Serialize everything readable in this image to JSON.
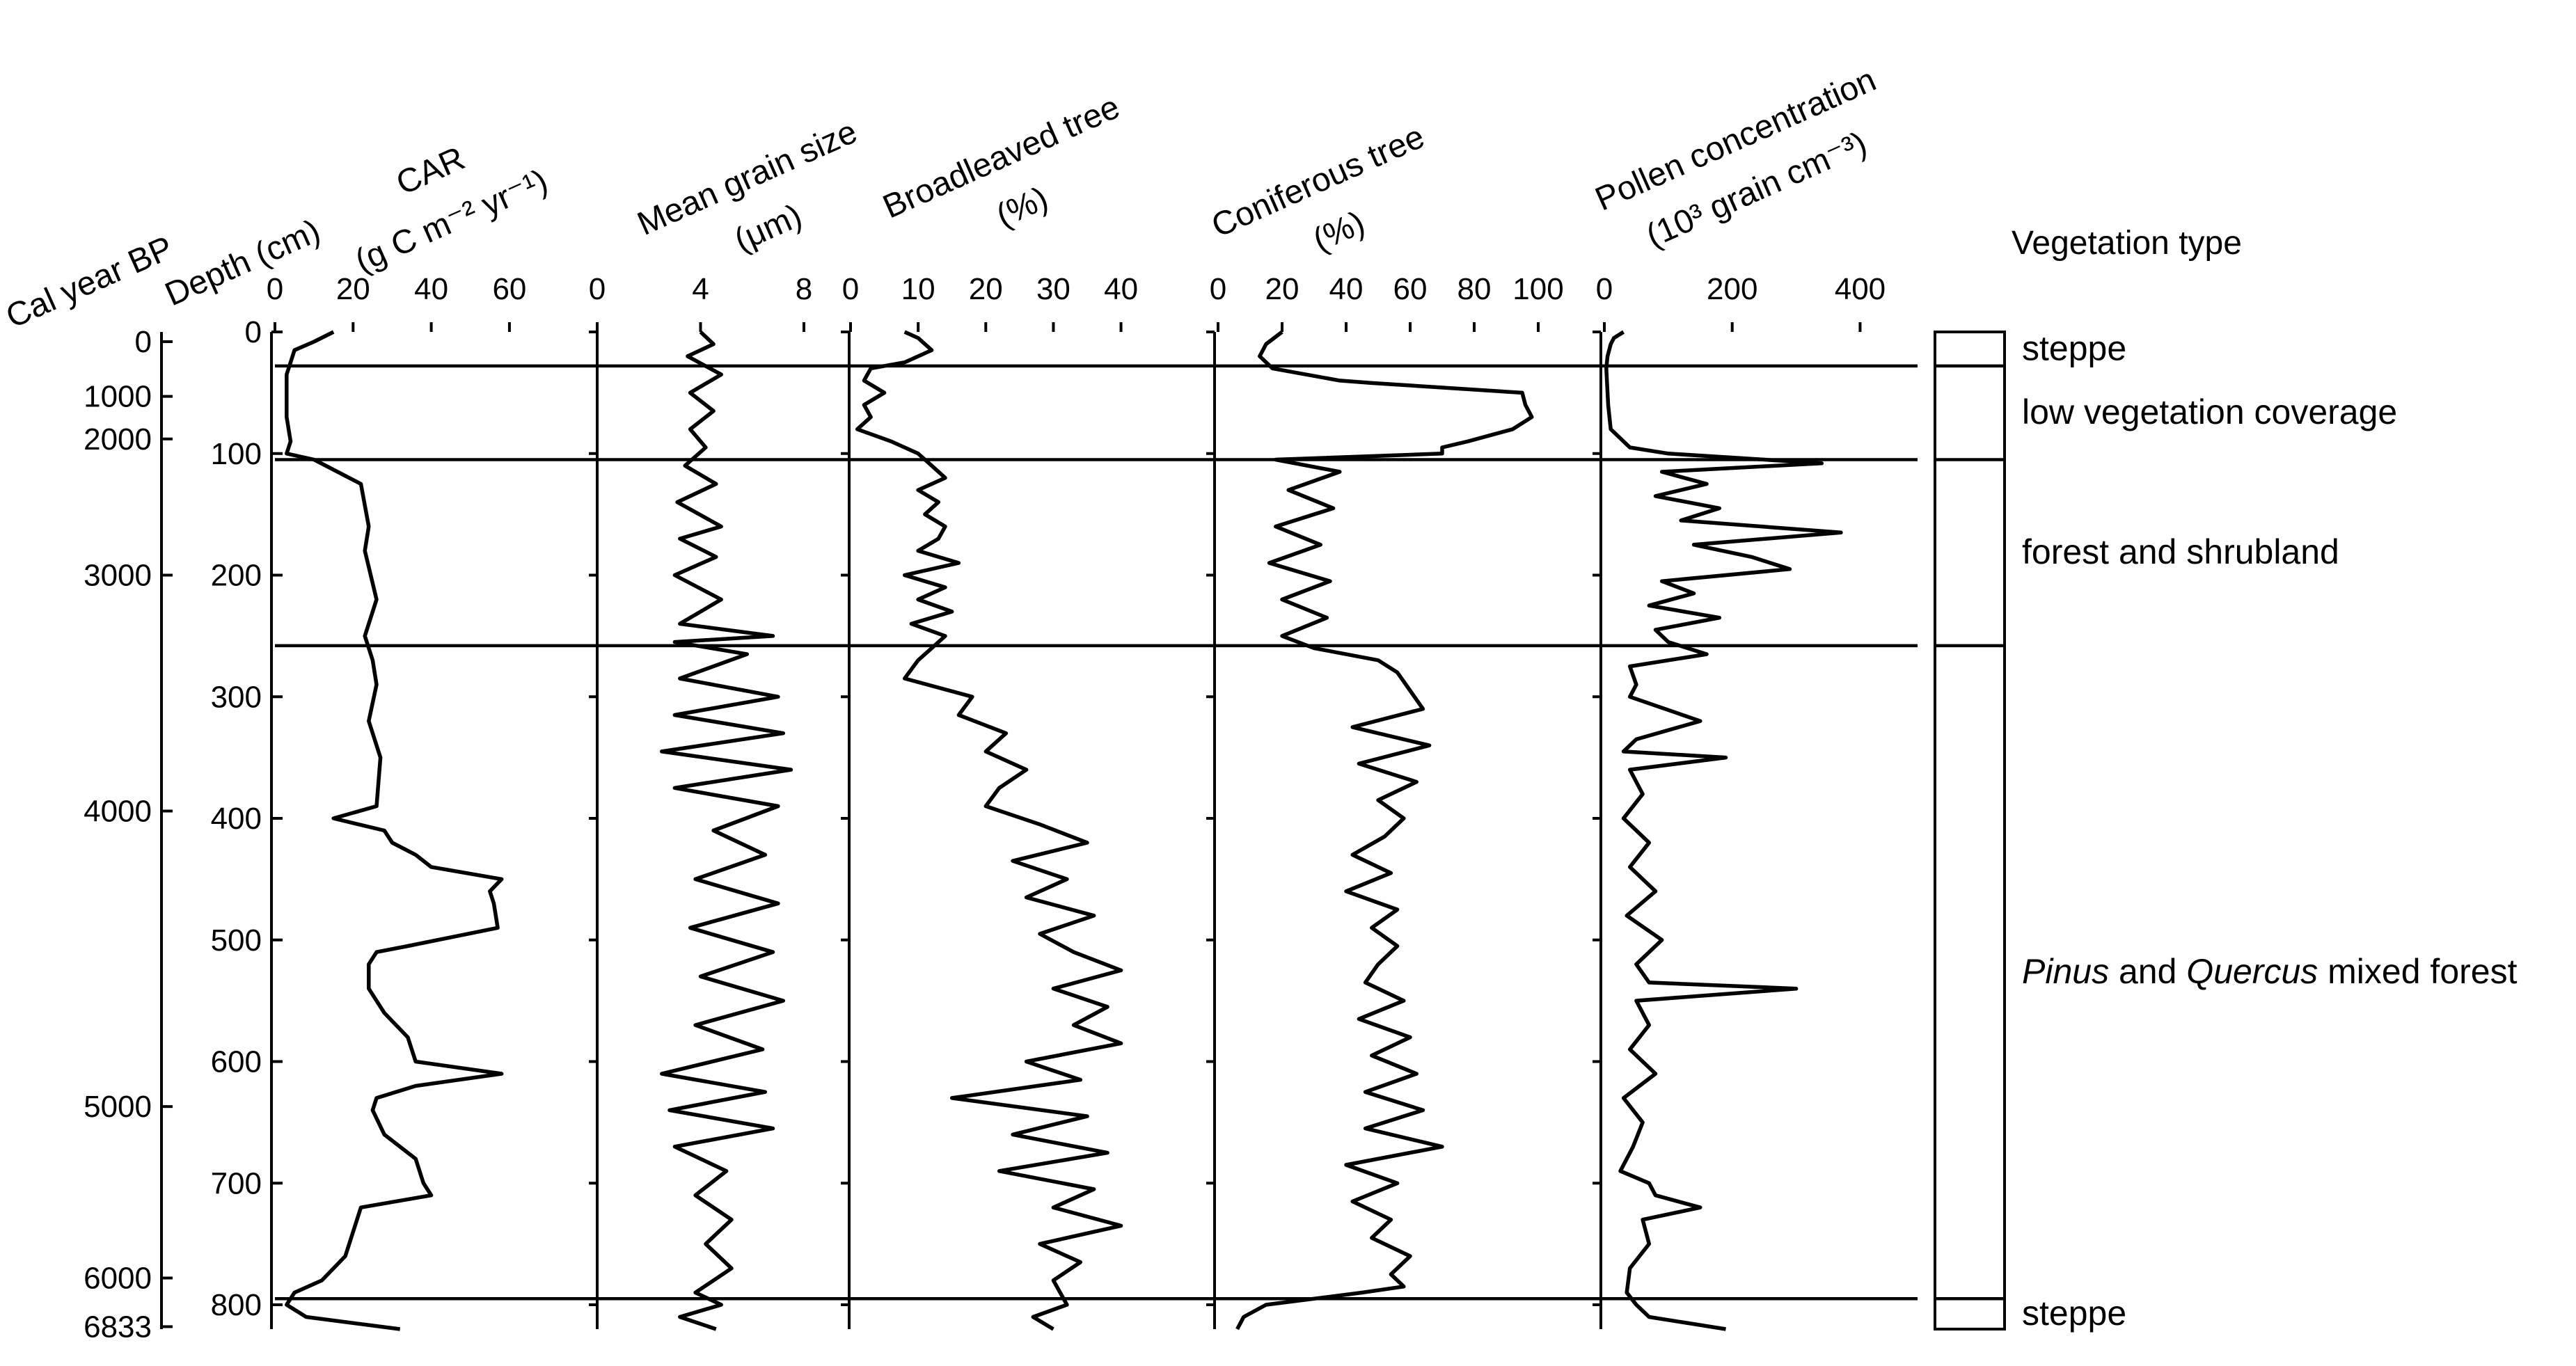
{
  "chart_data": {
    "type": "line",
    "orientation": "vertical-depth-profile",
    "depth_axis": {
      "label": "Depth (cm)",
      "range": [
        0,
        820
      ],
      "ticks": [
        0,
        100,
        200,
        300,
        400,
        500,
        600,
        700,
        800
      ]
    },
    "age_axis": {
      "label": "Cal year BP",
      "ticks": [
        {
          "label": "0",
          "depth": 8
        },
        {
          "label": "1000",
          "depth": 53
        },
        {
          "label": "2000",
          "depth": 88
        },
        {
          "label": "3000",
          "depth": 200
        },
        {
          "label": "4000",
          "depth": 394
        },
        {
          "label": "5000",
          "depth": 637
        },
        {
          "label": "6000",
          "depth": 778
        },
        {
          "label": "6833",
          "depth": 818
        }
      ]
    },
    "panels": [
      {
        "name": "CAR",
        "label_lines": [
          "CAR",
          "(g C m⁻² yr⁻¹)"
        ],
        "xlim": [
          0,
          65
        ],
        "ticks": [
          0,
          20,
          40,
          60
        ],
        "depths": [
          0,
          8,
          15,
          25,
          35,
          50,
          70,
          90,
          100,
          105,
          125,
          160,
          180,
          220,
          250,
          270,
          290,
          320,
          350,
          390,
          400,
          410,
          420,
          430,
          440,
          450,
          460,
          470,
          490,
          505,
          510,
          520,
          540,
          560,
          580,
          600,
          610,
          620,
          630,
          640,
          660,
          680,
          700,
          710,
          720,
          740,
          760,
          770,
          780,
          790,
          800,
          810,
          820
        ],
        "values": [
          15,
          10,
          5,
          4,
          3,
          3,
          3,
          4,
          3,
          10,
          22,
          24,
          23,
          26,
          23,
          25,
          26,
          24,
          27,
          26,
          15,
          28,
          30,
          36,
          40,
          58,
          55,
          56,
          57,
          34,
          26,
          24,
          24,
          28,
          34,
          36,
          58,
          36,
          26,
          25,
          28,
          36,
          38,
          40,
          22,
          20,
          18,
          15,
          12,
          5,
          3,
          8,
          32
        ]
      },
      {
        "name": "Mean grain size",
        "label_lines": [
          "Mean grain size",
          "(μm)"
        ],
        "xlim": [
          0,
          8
        ],
        "ticks": [
          0,
          4,
          8
        ],
        "depths": [
          0,
          10,
          20,
          35,
          50,
          65,
          80,
          95,
          110,
          125,
          140,
          160,
          170,
          185,
          200,
          220,
          240,
          250,
          255,
          265,
          285,
          300,
          315,
          330,
          345,
          360,
          375,
          390,
          410,
          430,
          450,
          470,
          490,
          510,
          530,
          550,
          570,
          590,
          610,
          625,
          640,
          655,
          670,
          690,
          710,
          730,
          750,
          770,
          790,
          800,
          810,
          820
        ],
        "values": [
          4,
          4.5,
          3.5,
          4.8,
          3.6,
          4.5,
          3.6,
          4.2,
          3.4,
          4.6,
          3.1,
          4.8,
          3.2,
          4.6,
          3.0,
          4.8,
          3.2,
          6.8,
          3.0,
          5.8,
          3.2,
          7.0,
          3.0,
          7.2,
          2.5,
          7.5,
          3.0,
          7.0,
          4.5,
          6.5,
          3.8,
          7.0,
          3.6,
          6.8,
          4.0,
          7.2,
          3.8,
          6.4,
          2.5,
          6.5,
          2.8,
          6.8,
          3.0,
          5.0,
          3.8,
          5.2,
          4.2,
          5.2,
          3.8,
          4.8,
          3.2,
          4.6
        ]
      },
      {
        "name": "Broadleaved tree",
        "label_lines": [
          "Broadleaved tree",
          "(%)"
        ],
        "xlim": [
          0,
          42
        ],
        "ticks": [
          0,
          10,
          20,
          30,
          40
        ],
        "depths": [
          0,
          5,
          15,
          25,
          30,
          40,
          50,
          60,
          70,
          80,
          90,
          100,
          110,
          120,
          130,
          140,
          150,
          160,
          170,
          180,
          190,
          200,
          210,
          220,
          230,
          240,
          250,
          260,
          270,
          285,
          300,
          315,
          330,
          345,
          360,
          375,
          390,
          405,
          420,
          435,
          450,
          465,
          480,
          495,
          510,
          525,
          540,
          555,
          570,
          585,
          600,
          615,
          630,
          645,
          660,
          675,
          690,
          705,
          720,
          735,
          750,
          765,
          780,
          800,
          810,
          820
        ],
        "values": [
          8,
          10,
          12,
          8,
          3,
          2,
          5,
          2,
          3,
          1,
          6,
          10,
          12,
          14,
          10,
          13,
          11,
          14,
          13,
          10,
          16,
          8,
          14,
          10,
          15,
          9,
          14,
          12,
          10,
          8,
          18,
          16,
          23,
          20,
          26,
          22,
          20,
          28,
          35,
          24,
          32,
          26,
          36,
          28,
          33,
          40,
          30,
          38,
          33,
          40,
          26,
          34,
          15,
          35,
          24,
          38,
          22,
          36,
          30,
          40,
          28,
          34,
          30,
          32,
          27,
          30
        ]
      },
      {
        "name": "Coniferous tree",
        "label_lines": [
          "Coniferous tree",
          "(%)"
        ],
        "xlim": [
          0,
          100
        ],
        "ticks": [
          0,
          20,
          40,
          60,
          80,
          100
        ],
        "depths": [
          0,
          10,
          20,
          30,
          40,
          42,
          50,
          60,
          70,
          80,
          90,
          95,
          100,
          105,
          115,
          130,
          145,
          160,
          175,
          190,
          205,
          220,
          235,
          250,
          260,
          270,
          280,
          295,
          310,
          325,
          340,
          355,
          370,
          385,
          400,
          415,
          430,
          445,
          460,
          475,
          490,
          505,
          520,
          535,
          550,
          565,
          580,
          595,
          610,
          625,
          640,
          655,
          670,
          685,
          700,
          715,
          730,
          745,
          760,
          775,
          785,
          790,
          800,
          810,
          820
        ],
        "values": [
          20,
          15,
          13,
          17,
          38,
          48,
          95,
          96,
          98,
          92,
          78,
          70,
          70,
          18,
          38,
          22,
          36,
          18,
          32,
          16,
          35,
          20,
          34,
          20,
          30,
          50,
          56,
          60,
          64,
          42,
          66,
          44,
          62,
          50,
          58,
          52,
          42,
          54,
          40,
          56,
          48,
          56,
          50,
          46,
          58,
          44,
          60,
          48,
          62,
          46,
          64,
          46,
          70,
          40,
          56,
          42,
          54,
          48,
          60,
          54,
          58,
          45,
          15,
          8,
          6
        ]
      },
      {
        "name": "Pollen concentration",
        "label_lines": [
          "Pollen concentration",
          "(10³ grain cm⁻³)"
        ],
        "xlim": [
          0,
          430
        ],
        "ticks": [
          0,
          200,
          400
        ],
        "depths": [
          0,
          5,
          10,
          20,
          30,
          40,
          60,
          80,
          95,
          100,
          108,
          115,
          125,
          135,
          145,
          155,
          165,
          175,
          185,
          195,
          205,
          215,
          225,
          235,
          245,
          255,
          265,
          275,
          290,
          300,
          320,
          335,
          345,
          350,
          360,
          380,
          400,
          420,
          440,
          460,
          480,
          500,
          520,
          535,
          540,
          550,
          570,
          590,
          610,
          630,
          650,
          670,
          690,
          700,
          710,
          720,
          730,
          750,
          770,
          790,
          800,
          810,
          820
        ],
        "values": [
          30,
          15,
          10,
          5,
          3,
          4,
          6,
          10,
          40,
          100,
          340,
          90,
          160,
          80,
          180,
          120,
          370,
          140,
          230,
          290,
          90,
          140,
          70,
          180,
          80,
          100,
          160,
          40,
          50,
          40,
          150,
          50,
          30,
          190,
          40,
          60,
          30,
          70,
          40,
          80,
          35,
          90,
          50,
          70,
          300,
          50,
          70,
          40,
          80,
          30,
          60,
          45,
          25,
          70,
          80,
          150,
          60,
          70,
          40,
          35,
          50,
          70,
          190
        ]
      }
    ],
    "vegetation": {
      "title": "Vegetation type",
      "zones": [
        {
          "label": "steppe",
          "from": 0,
          "to": 28
        },
        {
          "label": "low vegetation coverage",
          "from": 28,
          "to": 105
        },
        {
          "label": "forest and shrubland",
          "from": 105,
          "to": 258
        },
        {
          "label_parts": [
            "Pinus",
            " and ",
            "Quercus",
            " mixed forest"
          ],
          "label_italic": [
            true,
            false,
            true,
            false
          ],
          "from": 258,
          "to": 795
        },
        {
          "label": "steppe",
          "from": 795,
          "to": 820
        }
      ]
    },
    "zone_boundaries": [
      28,
      105,
      258,
      795
    ]
  }
}
